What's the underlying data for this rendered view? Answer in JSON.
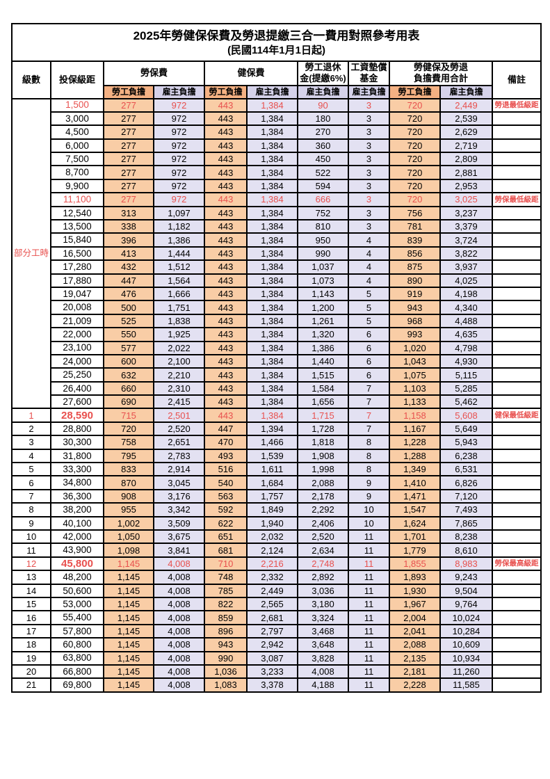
{
  "title": "2025年勞健保保費及勞退提繳三合一費用對照參考用表",
  "subtitle": "(民國114年1月1日起)",
  "header": {
    "level": "級數",
    "salary": "投保級距",
    "labor": "勞保費",
    "health": "健保費",
    "pension": "勞工退休\n金(提繳6%)",
    "wage_fund": "工資墊償\n基金",
    "total": "勞健保及勞退\n負擔費用合計",
    "remark": "備註",
    "employee": "勞工負擔",
    "employer": "雇主負擔"
  },
  "part_time_label": "部分工時",
  "colors": {
    "employee_cell_bg": "#F9CDA6",
    "employer_cell_bg": "#E3E1F2",
    "employee_header_bg": "#F4B183",
    "employer_header_bg": "#D5D2EA",
    "highlight_red": "#E8504E",
    "border": "#000000"
  },
  "rows": [
    {
      "level": "",
      "salary": "1,500",
      "labor_emp": "277",
      "labor_er": "972",
      "health_emp": "443",
      "health_er": "1,384",
      "pension_er": "90",
      "fund_er": "3",
      "total_emp": "720",
      "total_er": "2,449",
      "remark": "勞退最低級距",
      "red": true,
      "bold": false
    },
    {
      "level": "",
      "salary": "3,000",
      "labor_emp": "277",
      "labor_er": "972",
      "health_emp": "443",
      "health_er": "1,384",
      "pension_er": "180",
      "fund_er": "3",
      "total_emp": "720",
      "total_er": "2,539",
      "remark": "",
      "red": false,
      "bold": false
    },
    {
      "level": "",
      "salary": "4,500",
      "labor_emp": "277",
      "labor_er": "972",
      "health_emp": "443",
      "health_er": "1,384",
      "pension_er": "270",
      "fund_er": "3",
      "total_emp": "720",
      "total_er": "2,629",
      "remark": "",
      "red": false,
      "bold": false
    },
    {
      "level": "",
      "salary": "6,000",
      "labor_emp": "277",
      "labor_er": "972",
      "health_emp": "443",
      "health_er": "1,384",
      "pension_er": "360",
      "fund_er": "3",
      "total_emp": "720",
      "total_er": "2,719",
      "remark": "",
      "red": false,
      "bold": false
    },
    {
      "level": "",
      "salary": "7,500",
      "labor_emp": "277",
      "labor_er": "972",
      "health_emp": "443",
      "health_er": "1,384",
      "pension_er": "450",
      "fund_er": "3",
      "total_emp": "720",
      "total_er": "2,809",
      "remark": "",
      "red": false,
      "bold": false
    },
    {
      "level": "",
      "salary": "8,700",
      "labor_emp": "277",
      "labor_er": "972",
      "health_emp": "443",
      "health_er": "1,384",
      "pension_er": "522",
      "fund_er": "3",
      "total_emp": "720",
      "total_er": "2,881",
      "remark": "",
      "red": false,
      "bold": false
    },
    {
      "level": "",
      "salary": "9,900",
      "labor_emp": "277",
      "labor_er": "972",
      "health_emp": "443",
      "health_er": "1,384",
      "pension_er": "594",
      "fund_er": "3",
      "total_emp": "720",
      "total_er": "2,953",
      "remark": "",
      "red": false,
      "bold": false
    },
    {
      "level": "",
      "salary": "11,100",
      "labor_emp": "277",
      "labor_er": "972",
      "health_emp": "443",
      "health_er": "1,384",
      "pension_er": "666",
      "fund_er": "3",
      "total_emp": "720",
      "total_er": "3,025",
      "remark": "勞保最低級距",
      "red": true,
      "bold": false
    },
    {
      "level": "",
      "salary": "12,540",
      "labor_emp": "313",
      "labor_er": "1,097",
      "health_emp": "443",
      "health_er": "1,384",
      "pension_er": "752",
      "fund_er": "3",
      "total_emp": "756",
      "total_er": "3,237",
      "remark": "",
      "red": false,
      "bold": false
    },
    {
      "level": "",
      "salary": "13,500",
      "labor_emp": "338",
      "labor_er": "1,182",
      "health_emp": "443",
      "health_er": "1,384",
      "pension_er": "810",
      "fund_er": "3",
      "total_emp": "781",
      "total_er": "3,379",
      "remark": "",
      "red": false,
      "bold": false
    },
    {
      "level": "",
      "salary": "15,840",
      "labor_emp": "396",
      "labor_er": "1,386",
      "health_emp": "443",
      "health_er": "1,384",
      "pension_er": "950",
      "fund_er": "4",
      "total_emp": "839",
      "total_er": "3,724",
      "remark": "",
      "red": false,
      "bold": false
    },
    {
      "level": "",
      "salary": "16,500",
      "labor_emp": "413",
      "labor_er": "1,444",
      "health_emp": "443",
      "health_er": "1,384",
      "pension_er": "990",
      "fund_er": "4",
      "total_emp": "856",
      "total_er": "3,822",
      "remark": "",
      "red": false,
      "bold": false
    },
    {
      "level": "",
      "salary": "17,280",
      "labor_emp": "432",
      "labor_er": "1,512",
      "health_emp": "443",
      "health_er": "1,384",
      "pension_er": "1,037",
      "fund_er": "4",
      "total_emp": "875",
      "total_er": "3,937",
      "remark": "",
      "red": false,
      "bold": false
    },
    {
      "level": "",
      "salary": "17,880",
      "labor_emp": "447",
      "labor_er": "1,564",
      "health_emp": "443",
      "health_er": "1,384",
      "pension_er": "1,073",
      "fund_er": "4",
      "total_emp": "890",
      "total_er": "4,025",
      "remark": "",
      "red": false,
      "bold": false
    },
    {
      "level": "",
      "salary": "19,047",
      "labor_emp": "476",
      "labor_er": "1,666",
      "health_emp": "443",
      "health_er": "1,384",
      "pension_er": "1,143",
      "fund_er": "5",
      "total_emp": "919",
      "total_er": "4,198",
      "remark": "",
      "red": false,
      "bold": false
    },
    {
      "level": "",
      "salary": "20,008",
      "labor_emp": "500",
      "labor_er": "1,751",
      "health_emp": "443",
      "health_er": "1,384",
      "pension_er": "1,200",
      "fund_er": "5",
      "total_emp": "943",
      "total_er": "4,340",
      "remark": "",
      "red": false,
      "bold": false
    },
    {
      "level": "",
      "salary": "21,009",
      "labor_emp": "525",
      "labor_er": "1,838",
      "health_emp": "443",
      "health_er": "1,384",
      "pension_er": "1,261",
      "fund_er": "5",
      "total_emp": "968",
      "total_er": "4,488",
      "remark": "",
      "red": false,
      "bold": false
    },
    {
      "level": "",
      "salary": "22,000",
      "labor_emp": "550",
      "labor_er": "1,925",
      "health_emp": "443",
      "health_er": "1,384",
      "pension_er": "1,320",
      "fund_er": "6",
      "total_emp": "993",
      "total_er": "4,635",
      "remark": "",
      "red": false,
      "bold": false
    },
    {
      "level": "",
      "salary": "23,100",
      "labor_emp": "577",
      "labor_er": "2,022",
      "health_emp": "443",
      "health_er": "1,384",
      "pension_er": "1,386",
      "fund_er": "6",
      "total_emp": "1,020",
      "total_er": "4,798",
      "remark": "",
      "red": false,
      "bold": false
    },
    {
      "level": "",
      "salary": "24,000",
      "labor_emp": "600",
      "labor_er": "2,100",
      "health_emp": "443",
      "health_er": "1,384",
      "pension_er": "1,440",
      "fund_er": "6",
      "total_emp": "1,043",
      "total_er": "4,930",
      "remark": "",
      "red": false,
      "bold": false
    },
    {
      "level": "",
      "salary": "25,250",
      "labor_emp": "632",
      "labor_er": "2,210",
      "health_emp": "443",
      "health_er": "1,384",
      "pension_er": "1,515",
      "fund_er": "6",
      "total_emp": "1,075",
      "total_er": "5,115",
      "remark": "",
      "red": false,
      "bold": false
    },
    {
      "level": "",
      "salary": "26,400",
      "labor_emp": "660",
      "labor_er": "2,310",
      "health_emp": "443",
      "health_er": "1,384",
      "pension_er": "1,584",
      "fund_er": "7",
      "total_emp": "1,103",
      "total_er": "5,285",
      "remark": "",
      "red": false,
      "bold": false
    },
    {
      "level": "",
      "salary": "27,600",
      "labor_emp": "690",
      "labor_er": "2,415",
      "health_emp": "443",
      "health_er": "1,384",
      "pension_er": "1,656",
      "fund_er": "7",
      "total_emp": "1,133",
      "total_er": "5,462",
      "remark": "",
      "red": false,
      "bold": false
    },
    {
      "level": "1",
      "salary": "28,590",
      "labor_emp": "715",
      "labor_er": "2,501",
      "health_emp": "443",
      "health_er": "1,384",
      "pension_er": "1,715",
      "fund_er": "7",
      "total_emp": "1,158",
      "total_er": "5,608",
      "remark": "健保最低級距",
      "red": true,
      "bold": true
    },
    {
      "level": "2",
      "salary": "28,800",
      "labor_emp": "720",
      "labor_er": "2,520",
      "health_emp": "447",
      "health_er": "1,394",
      "pension_er": "1,728",
      "fund_er": "7",
      "total_emp": "1,167",
      "total_er": "5,649",
      "remark": "",
      "red": false,
      "bold": false
    },
    {
      "level": "3",
      "salary": "30,300",
      "labor_emp": "758",
      "labor_er": "2,651",
      "health_emp": "470",
      "health_er": "1,466",
      "pension_er": "1,818",
      "fund_er": "8",
      "total_emp": "1,228",
      "total_er": "5,943",
      "remark": "",
      "red": false,
      "bold": false
    },
    {
      "level": "4",
      "salary": "31,800",
      "labor_emp": "795",
      "labor_er": "2,783",
      "health_emp": "493",
      "health_er": "1,539",
      "pension_er": "1,908",
      "fund_er": "8",
      "total_emp": "1,288",
      "total_er": "6,238",
      "remark": "",
      "red": false,
      "bold": false
    },
    {
      "level": "5",
      "salary": "33,300",
      "labor_emp": "833",
      "labor_er": "2,914",
      "health_emp": "516",
      "health_er": "1,611",
      "pension_er": "1,998",
      "fund_er": "8",
      "total_emp": "1,349",
      "total_er": "6,531",
      "remark": "",
      "red": false,
      "bold": false
    },
    {
      "level": "6",
      "salary": "34,800",
      "labor_emp": "870",
      "labor_er": "3,045",
      "health_emp": "540",
      "health_er": "1,684",
      "pension_er": "2,088",
      "fund_er": "9",
      "total_emp": "1,410",
      "total_er": "6,826",
      "remark": "",
      "red": false,
      "bold": false
    },
    {
      "level": "7",
      "salary": "36,300",
      "labor_emp": "908",
      "labor_er": "3,176",
      "health_emp": "563",
      "health_er": "1,757",
      "pension_er": "2,178",
      "fund_er": "9",
      "total_emp": "1,471",
      "total_er": "7,120",
      "remark": "",
      "red": false,
      "bold": false
    },
    {
      "level": "8",
      "salary": "38,200",
      "labor_emp": "955",
      "labor_er": "3,342",
      "health_emp": "592",
      "health_er": "1,849",
      "pension_er": "2,292",
      "fund_er": "10",
      "total_emp": "1,547",
      "total_er": "7,493",
      "remark": "",
      "red": false,
      "bold": false
    },
    {
      "level": "9",
      "salary": "40,100",
      "labor_emp": "1,002",
      "labor_er": "3,509",
      "health_emp": "622",
      "health_er": "1,940",
      "pension_er": "2,406",
      "fund_er": "10",
      "total_emp": "1,624",
      "total_er": "7,865",
      "remark": "",
      "red": false,
      "bold": false
    },
    {
      "level": "10",
      "salary": "42,000",
      "labor_emp": "1,050",
      "labor_er": "3,675",
      "health_emp": "651",
      "health_er": "2,032",
      "pension_er": "2,520",
      "fund_er": "11",
      "total_emp": "1,701",
      "total_er": "8,238",
      "remark": "",
      "red": false,
      "bold": false
    },
    {
      "level": "11",
      "salary": "43,900",
      "labor_emp": "1,098",
      "labor_er": "3,841",
      "health_emp": "681",
      "health_er": "2,124",
      "pension_er": "2,634",
      "fund_er": "11",
      "total_emp": "1,779",
      "total_er": "8,610",
      "remark": "",
      "red": false,
      "bold": false
    },
    {
      "level": "12",
      "salary": "45,800",
      "labor_emp": "1,145",
      "labor_er": "4,008",
      "health_emp": "710",
      "health_er": "2,216",
      "pension_er": "2,748",
      "fund_er": "11",
      "total_emp": "1,855",
      "total_er": "8,983",
      "remark": "勞保最高級距",
      "red": true,
      "bold": true
    },
    {
      "level": "13",
      "salary": "48,200",
      "labor_emp": "1,145",
      "labor_er": "4,008",
      "health_emp": "748",
      "health_er": "2,332",
      "pension_er": "2,892",
      "fund_er": "11",
      "total_emp": "1,893",
      "total_er": "9,243",
      "remark": "",
      "red": false,
      "bold": false
    },
    {
      "level": "14",
      "salary": "50,600",
      "labor_emp": "1,145",
      "labor_er": "4,008",
      "health_emp": "785",
      "health_er": "2,449",
      "pension_er": "3,036",
      "fund_er": "11",
      "total_emp": "1,930",
      "total_er": "9,504",
      "remark": "",
      "red": false,
      "bold": false
    },
    {
      "level": "15",
      "salary": "53,000",
      "labor_emp": "1,145",
      "labor_er": "4,008",
      "health_emp": "822",
      "health_er": "2,565",
      "pension_er": "3,180",
      "fund_er": "11",
      "total_emp": "1,967",
      "total_er": "9,764",
      "remark": "",
      "red": false,
      "bold": false
    },
    {
      "level": "16",
      "salary": "55,400",
      "labor_emp": "1,145",
      "labor_er": "4,008",
      "health_emp": "859",
      "health_er": "2,681",
      "pension_er": "3,324",
      "fund_er": "11",
      "total_emp": "2,004",
      "total_er": "10,024",
      "remark": "",
      "red": false,
      "bold": false
    },
    {
      "level": "17",
      "salary": "57,800",
      "labor_emp": "1,145",
      "labor_er": "4,008",
      "health_emp": "896",
      "health_er": "2,797",
      "pension_er": "3,468",
      "fund_er": "11",
      "total_emp": "2,041",
      "total_er": "10,284",
      "remark": "",
      "red": false,
      "bold": false
    },
    {
      "level": "18",
      "salary": "60,800",
      "labor_emp": "1,145",
      "labor_er": "4,008",
      "health_emp": "943",
      "health_er": "2,942",
      "pension_er": "3,648",
      "fund_er": "11",
      "total_emp": "2,088",
      "total_er": "10,609",
      "remark": "",
      "red": false,
      "bold": false
    },
    {
      "level": "19",
      "salary": "63,800",
      "labor_emp": "1,145",
      "labor_er": "4,008",
      "health_emp": "990",
      "health_er": "3,087",
      "pension_er": "3,828",
      "fund_er": "11",
      "total_emp": "2,135",
      "total_er": "10,934",
      "remark": "",
      "red": false,
      "bold": false
    },
    {
      "level": "20",
      "salary": "66,800",
      "labor_emp": "1,145",
      "labor_er": "4,008",
      "health_emp": "1,036",
      "health_er": "3,233",
      "pension_er": "4,008",
      "fund_er": "11",
      "total_emp": "2,181",
      "total_er": "11,260",
      "remark": "",
      "red": false,
      "bold": false
    },
    {
      "level": "21",
      "salary": "69,800",
      "labor_emp": "1,145",
      "labor_er": "4,008",
      "health_emp": "1,083",
      "health_er": "3,378",
      "pension_er": "4,188",
      "fund_er": "11",
      "total_emp": "2,228",
      "total_er": "11,585",
      "remark": "",
      "red": false,
      "bold": false
    }
  ]
}
